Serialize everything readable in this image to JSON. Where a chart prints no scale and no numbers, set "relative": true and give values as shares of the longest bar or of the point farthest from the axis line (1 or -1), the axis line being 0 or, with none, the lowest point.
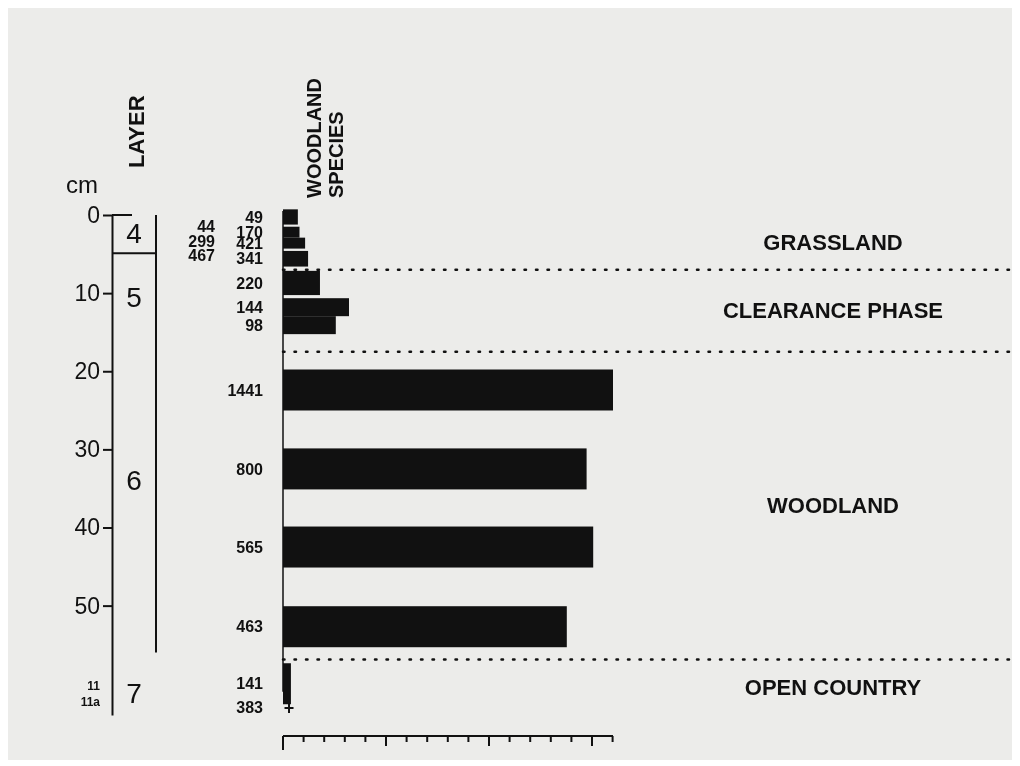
{
  "chart_data": {
    "type": "bar",
    "orientation": "horizontal",
    "relative": true,
    "title": "WOODLAND SPECIES",
    "ylabel": "cm",
    "x": [
      0.25,
      2.2,
      3.6,
      5.6,
      8.7,
      11.8,
      14.1,
      22.4,
      32.5,
      42.5,
      52.7,
      60.0
    ],
    "values": [
      0.045,
      0.05,
      0.067,
      0.076,
      0.112,
      0.2,
      0.16,
      1,
      0.92,
      0.94,
      0.86,
      0.024
    ],
    "color": "#111111",
    "ylim": [
      64,
      0
    ],
    "yticks": [
      0,
      10,
      20,
      30,
      40,
      50
    ],
    "ref_lines": [
      {
        "axis": "y",
        "value": 7,
        "line_style": "dotted"
      },
      {
        "axis": "y",
        "value": 17.5,
        "line_style": "dotted"
      },
      {
        "axis": "y",
        "value": 56.9,
        "line_style": "dotted"
      }
    ],
    "annotations": [
      "LAYER",
      "4",
      "5",
      "6",
      "7",
      "44",
      "299",
      "467",
      "11",
      "11a",
      "49",
      "170",
      "421",
      "341",
      "220",
      "144",
      "98",
      "1441",
      "800",
      "565",
      "463",
      "141",
      "383",
      "GRASSLAND",
      "CLEARANCE PHASE",
      "WOODLAND",
      "OPEN COUNTRY",
      "+"
    ]
  }
}
